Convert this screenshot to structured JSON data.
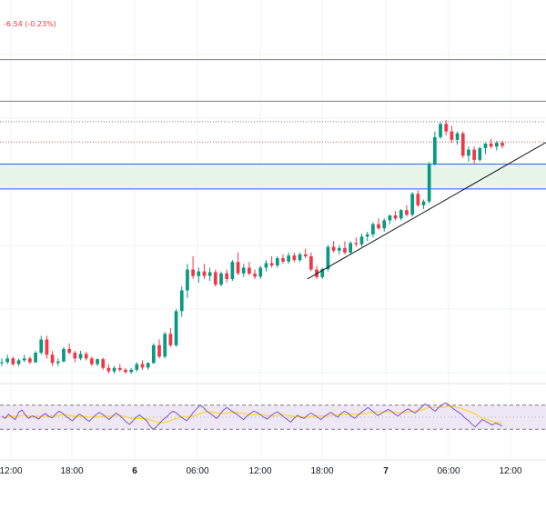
{
  "header": {
    "change": "-6.54 (-0.23%)"
  },
  "colors": {
    "up": "#089981",
    "down": "#f23645",
    "grid": "#f0f3fa",
    "zone_fill": "#e8f5e9",
    "zone_border": "#2962ff",
    "rsi_line": "#7e57c2",
    "rsi_ma": "#fdd835",
    "rsi_band": "#ede7f6"
  },
  "chart_data": [
    {
      "type": "candlestick",
      "x_tick_labels": [
        "12:00",
        "18:00",
        "6",
        "06:00",
        "12:00",
        "18:00",
        "7",
        "06:00",
        "12:00"
      ],
      "y_range_relative": [
        0,
        100
      ],
      "horizontal_levels": [
        {
          "name": "level-1",
          "y": 93,
          "style": "solid",
          "color": "#787b86"
        },
        {
          "name": "level-2",
          "y": 82,
          "style": "solid",
          "color": "#787b86"
        },
        {
          "name": "level-3",
          "y": 76.6,
          "style": "dotted",
          "color": "#787b86"
        },
        {
          "name": "level-4",
          "y": 71.2,
          "style": "dotted",
          "color": "#b2675e"
        }
      ],
      "zone": {
        "upper": 65.4,
        "lower": 58.8
      },
      "trendline": {
        "from": {
          "bar": 103,
          "price": 35
        },
        "to": {
          "bar": 186,
          "price": 72.5
        }
      },
      "candles_ohlc": [
        [
          13,
          14,
          12,
          13
        ],
        [
          13,
          15,
          12.5,
          14
        ],
        [
          14,
          14.5,
          12,
          12.5
        ],
        [
          12.5,
          14,
          12,
          13.5
        ],
        [
          13.5,
          15,
          13,
          14
        ],
        [
          14,
          14.5,
          12.5,
          13
        ],
        [
          13,
          16,
          12.8,
          15.5
        ],
        [
          15.5,
          20,
          15,
          19
        ],
        [
          19,
          20,
          14,
          15
        ],
        [
          15,
          16,
          12,
          12.8
        ],
        [
          12.8,
          14,
          12,
          13.2
        ],
        [
          13.2,
          17,
          13,
          16.5
        ],
        [
          16.5,
          18,
          15,
          15.5
        ],
        [
          15.5,
          16,
          13,
          14
        ],
        [
          14,
          16,
          13.5,
          15.2
        ],
        [
          15.2,
          15.8,
          13.5,
          14
        ],
        [
          14,
          14.5,
          12,
          12.5
        ],
        [
          12.5,
          14,
          12,
          13.8
        ],
        [
          13.8,
          14.2,
          11,
          11.5
        ],
        [
          11.5,
          12.5,
          10,
          10.6
        ],
        [
          10.6,
          12,
          10,
          11.5
        ],
        [
          11.5,
          12.5,
          10.5,
          11
        ],
        [
          11,
          11.5,
          10,
          10.4
        ],
        [
          10.4,
          11.5,
          10,
          11
        ],
        [
          11,
          13,
          10.5,
          12.5
        ],
        [
          12.5,
          13.5,
          11,
          11.6
        ],
        [
          11.6,
          13,
          11,
          12.8
        ],
        [
          12.8,
          18,
          12.5,
          17.5
        ],
        [
          17.5,
          19,
          14,
          14.5
        ],
        [
          14.5,
          21,
          14,
          20.5
        ],
        [
          20.5,
          22,
          17,
          17.5
        ],
        [
          17.5,
          27,
          17,
          26.5
        ],
        [
          26.5,
          33,
          25,
          32
        ],
        [
          32,
          39,
          30,
          37.5
        ],
        [
          37.5,
          41,
          35,
          35.8
        ],
        [
          35.8,
          38,
          34,
          37
        ],
        [
          37,
          39,
          35,
          35.8
        ],
        [
          35.8,
          38,
          34.5,
          36.8
        ],
        [
          36.8,
          37.5,
          33,
          33.5
        ],
        [
          33.5,
          37,
          33,
          36.5
        ],
        [
          36.5,
          37.5,
          34,
          35
        ],
        [
          35,
          40,
          34.5,
          39.5
        ],
        [
          39.5,
          42,
          36,
          36.5
        ],
        [
          36.5,
          39,
          35.5,
          38
        ],
        [
          38,
          39.5,
          36,
          36.4
        ],
        [
          36.4,
          37.5,
          35,
          35.6
        ],
        [
          35.6,
          38.5,
          35,
          38
        ],
        [
          38,
          40,
          37,
          39.2
        ],
        [
          39.2,
          41,
          38,
          38.6
        ],
        [
          38.6,
          41,
          38,
          40.5
        ],
        [
          40.5,
          41.5,
          39,
          39.6
        ],
        [
          39.6,
          42,
          39,
          41.2
        ],
        [
          41.2,
          42,
          39.5,
          40
        ],
        [
          40,
          42,
          39.5,
          41.5
        ],
        [
          41.5,
          43,
          40.5,
          41
        ],
        [
          41,
          42,
          37,
          37.5
        ],
        [
          37.5,
          38.5,
          35,
          35.5
        ],
        [
          35.5,
          38,
          35,
          37.6
        ],
        [
          37.6,
          44,
          37,
          43.5
        ],
        [
          43.5,
          45,
          42,
          42.5
        ],
        [
          42.5,
          44,
          41.5,
          43.2
        ],
        [
          43.2,
          45,
          41.5,
          42
        ],
        [
          42,
          45,
          41.5,
          44.5
        ],
        [
          44.5,
          46,
          43.5,
          44.2
        ],
        [
          44.2,
          47,
          43.5,
          46.2
        ],
        [
          46.2,
          47.5,
          45,
          46.8
        ],
        [
          46.8,
          50,
          46,
          49.5
        ],
        [
          49.5,
          51,
          48,
          48.4
        ],
        [
          48.4,
          51,
          47.5,
          50.5
        ],
        [
          50.5,
          52,
          49.5,
          51.8
        ],
        [
          51.8,
          53,
          50.5,
          51
        ],
        [
          51,
          53.5,
          50.5,
          53.2
        ],
        [
          53.2,
          54.5,
          51.5,
          52
        ],
        [
          52,
          58,
          51.5,
          57.5
        ],
        [
          57.5,
          58.5,
          54,
          54.5
        ],
        [
          54.5,
          56,
          53.5,
          55.5
        ],
        [
          55.5,
          66,
          55,
          65.5
        ],
        [
          65.5,
          74,
          65,
          72.5
        ],
        [
          72.5,
          76.5,
          72,
          76
        ],
        [
          76,
          77,
          73,
          74
        ],
        [
          74,
          75.5,
          71,
          71.8
        ],
        [
          71.8,
          74,
          70.5,
          73.5
        ],
        [
          73.5,
          74,
          67,
          67.6
        ],
        [
          67.6,
          70,
          66,
          69.2
        ],
        [
          69.2,
          70,
          65.5,
          66.5
        ],
        [
          66.5,
          70,
          66,
          69.6
        ],
        [
          69.6,
          71,
          68,
          70.8
        ],
        [
          70.8,
          72,
          69.5,
          70
        ],
        [
          70,
          71.5,
          69,
          71
        ],
        [
          71,
          71.5,
          69.5,
          70.2
        ]
      ]
    },
    {
      "type": "line",
      "name": "RSI",
      "band": {
        "upper": 70,
        "lower": 30,
        "mid": 50
      },
      "rsi_values": [
        52,
        48,
        55,
        50,
        46,
        58,
        62,
        54,
        48,
        52,
        50,
        47,
        53,
        56,
        51,
        49,
        55,
        60,
        57,
        52,
        48,
        44,
        50,
        55,
        52,
        47,
        43,
        49,
        54,
        58,
        55,
        50,
        46,
        52,
        57,
        53,
        48,
        42,
        38,
        44,
        50,
        54,
        49,
        45,
        36,
        30,
        34,
        40,
        46,
        50,
        56,
        60,
        57,
        52,
        48,
        44,
        50,
        58,
        64,
        70,
        66,
        60,
        56,
        52,
        48,
        55,
        62,
        66,
        62,
        58,
        55,
        50,
        46,
        52,
        56,
        60,
        58,
        54,
        50,
        47,
        52,
        56,
        59,
        55,
        50,
        46,
        42,
        48,
        53,
        50,
        48,
        53,
        57,
        54,
        50,
        46,
        51,
        55,
        58,
        54,
        50,
        56,
        60,
        57,
        52,
        48,
        53,
        58,
        62,
        66,
        62,
        57,
        53,
        56,
        60,
        63,
        60,
        55,
        52,
        57,
        61,
        64,
        60,
        57,
        62,
        67,
        72,
        69,
        64,
        60,
        66,
        70,
        74,
        71,
        66,
        62,
        58,
        54,
        48,
        44,
        38,
        34,
        40,
        46,
        43,
        40,
        37,
        40,
        38,
        35
      ],
      "rsi_ma_values": [
        50,
        50,
        51,
        51,
        51,
        52,
        53,
        53,
        52,
        52,
        52,
        51,
        51,
        52,
        52,
        52,
        52,
        53,
        54,
        54,
        53,
        52,
        51,
        51,
        51,
        51,
        50,
        50,
        50,
        51,
        52,
        52,
        52,
        52,
        53,
        53,
        52,
        51,
        49,
        48,
        48,
        48,
        48,
        47,
        46,
        44,
        42,
        41,
        41,
        42,
        44,
        46,
        48,
        50,
        51,
        51,
        51,
        52,
        54,
        56,
        58,
        59,
        59,
        58,
        57,
        56,
        56,
        57,
        58,
        58,
        58,
        57,
        56,
        55,
        54,
        54,
        55,
        55,
        54,
        53,
        52,
        52,
        53,
        54,
        54,
        53,
        52,
        51,
        51,
        51,
        50,
        50,
        51,
        52,
        52,
        52,
        52,
        52,
        53,
        54,
        54,
        54,
        55,
        55,
        55,
        55,
        55,
        55,
        56,
        57,
        58,
        59,
        59,
        59,
        59,
        59,
        59,
        58,
        57,
        57,
        58,
        59,
        60,
        60,
        61,
        62,
        64,
        66,
        66,
        66,
        66,
        66,
        67,
        68,
        68,
        67,
        66,
        64,
        62,
        60,
        58,
        55,
        52,
        49,
        47,
        45,
        43,
        42,
        41,
        40
      ]
    }
  ]
}
